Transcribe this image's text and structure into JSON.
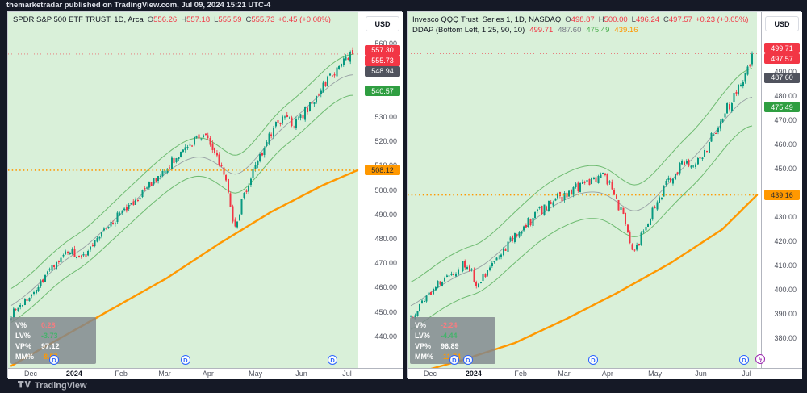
{
  "theme": {
    "page_bg": "#151926",
    "chart_bg_green": "#d9f0d9",
    "up_color": "#089981",
    "down_color": "#f23645",
    "band_color": "#62b565",
    "mid_color": "#8b909a",
    "ma_color": "#ff9800",
    "accent_blue": "#2962ff",
    "accent_purple": "#9c27b0"
  },
  "attribution": "themarketradar published on TradingView.com, Jul 09, 2024 15:21 UTC-4",
  "footer": {
    "brand": "TradingView"
  },
  "panels": [
    {
      "title": "SPDR S&P 500 ETF TRUST, 1D, Arca",
      "ohlc": {
        "o_label": "O",
        "o": "556.26",
        "h_label": "H",
        "h": "557.18",
        "l_label": "L",
        "l": "555.59",
        "c_label": "C",
        "c": "555.73",
        "change": "+0.45 (+0.08%)"
      },
      "currency_label": "USD",
      "price_labels": [
        {
          "text": "557.30",
          "price": 557.3,
          "bg": "#f23645",
          "fg": "#ffffff"
        },
        {
          "text": "555.73",
          "price": 555.73,
          "bg": "#f23645",
          "fg": "#ffffff"
        },
        {
          "text": "548.94",
          "price": 548.94,
          "bg": "#50535e",
          "fg": "#ffffff"
        },
        {
          "text": "540.57",
          "price": 540.57,
          "bg": "#2f9e41",
          "fg": "#ffffff"
        },
        {
          "text": "508.12",
          "price": 508.12,
          "bg": "#ff9800",
          "fg": "#2e2e2e"
        }
      ],
      "stats": {
        "rows": [
          {
            "label": "V%",
            "value": "0.28",
            "color": "#f77c80"
          },
          {
            "label": "LV%",
            "value": "-3.73",
            "color": "#45b36b"
          },
          {
            "label": "VP%",
            "value": "97.12",
            "color": "#ffffff"
          },
          {
            "label": "MM%",
            "value": "-8.57",
            "color": "#ff9800"
          }
        ]
      },
      "d_markers": [
        0.13,
        0.502,
        0.918
      ],
      "has_flash_marker": false
    },
    {
      "title": "Invesco QQQ Trust, Series 1, 1D, NASDAQ",
      "ohlc": {
        "o_label": "O",
        "o": "498.87",
        "h_label": "H",
        "h": "500.00",
        "l_label": "L",
        "l": "496.24",
        "c_label": "C",
        "c": "497.57",
        "change": "+0.23 (+0.05%)"
      },
      "indicator": {
        "name": "DDAP (Bottom Left, 1.25, 90, 10)",
        "values": [
          "499.71",
          "487.60",
          "475.49",
          "439.16"
        ],
        "value_colors": [
          "#f23645",
          "#787b86",
          "#4caf50",
          "#ff9800"
        ]
      },
      "currency_label": "USD",
      "price_labels": [
        {
          "text": "499.71",
          "price": 499.71,
          "bg": "#f23645",
          "fg": "#ffffff"
        },
        {
          "text": "497.57",
          "price": 497.57,
          "bg": "#f23645",
          "fg": "#ffffff"
        },
        {
          "text": "487.60",
          "price": 487.6,
          "bg": "#50535e",
          "fg": "#ffffff"
        },
        {
          "text": "475.49",
          "price": 475.49,
          "bg": "#2f9e41",
          "fg": "#ffffff"
        },
        {
          "text": "439.16",
          "price": 439.16,
          "bg": "#ff9800",
          "fg": "#2e2e2e"
        }
      ],
      "stats": {
        "rows": [
          {
            "label": "V%",
            "value": "-2.24",
            "color": "#f77c80"
          },
          {
            "label": "LV%",
            "value": "-4.44",
            "color": "#45b36b"
          },
          {
            "label": "VP%",
            "value": "96.89",
            "color": "#ffffff"
          },
          {
            "label": "MM%",
            "value": "-11.74",
            "color": "#ff9800"
          }
        ]
      },
      "d_markers": [
        0.132,
        0.171,
        0.525,
        0.952
      ],
      "has_flash_marker": true
    }
  ],
  "chart_data": [
    {
      "type": "candlestick",
      "title": "SPDR S&P 500 ETF TRUST, 1D, Arca",
      "timeframe": "1D",
      "price_axis": {
        "visible_min": 427.1,
        "visible_max": 572.9,
        "tick_min": 440,
        "tick_max": 560,
        "tick_step": 10
      },
      "time_axis": {
        "labels": [
          {
            "label": "Dec",
            "f": 0.064
          },
          {
            "label": "2024",
            "f": 0.187,
            "year": true
          },
          {
            "label": "Feb",
            "f": 0.32
          },
          {
            "label": "Mar",
            "f": 0.443
          },
          {
            "label": "Apr",
            "f": 0.566
          },
          {
            "label": "May",
            "f": 0.7
          },
          {
            "label": "Jun",
            "f": 0.83
          },
          {
            "label": "Jul",
            "f": 0.959
          }
        ]
      },
      "close_anchors": [
        [
          0,
          449
        ],
        [
          0.05,
          456
        ],
        [
          0.1,
          465
        ],
        [
          0.14,
          472
        ],
        [
          0.17,
          475.5
        ],
        [
          0.2,
          472
        ],
        [
          0.23,
          475
        ],
        [
          0.27,
          483
        ],
        [
          0.31,
          489
        ],
        [
          0.35,
          494
        ],
        [
          0.4,
          501
        ],
        [
          0.45,
          509
        ],
        [
          0.5,
          515
        ],
        [
          0.54,
          521
        ],
        [
          0.57,
          523
        ],
        [
          0.6,
          514
        ],
        [
          0.63,
          503
        ],
        [
          0.655,
          484
        ],
        [
          0.68,
          497
        ],
        [
          0.71,
          508
        ],
        [
          0.74,
          517
        ],
        [
          0.77,
          526
        ],
        [
          0.8,
          529
        ],
        [
          0.83,
          527
        ],
        [
          0.86,
          532
        ],
        [
          0.89,
          538
        ],
        [
          0.92,
          544
        ],
        [
          0.95,
          549
        ],
        [
          0.975,
          553
        ],
        [
          1,
          555.9
        ]
      ],
      "ma_anchors": [
        [
          0,
          428
        ],
        [
          0.15,
          440
        ],
        [
          0.3,
          452
        ],
        [
          0.45,
          464
        ],
        [
          0.6,
          478
        ],
        [
          0.75,
          491
        ],
        [
          0.9,
          502
        ],
        [
          1,
          508.12
        ]
      ],
      "band_width_pct": 0.0153,
      "levels": {
        "upper_band": 557.3,
        "mid_band": 548.94,
        "lower_band": 540.57,
        "anchor_line": 508.12,
        "last_close": 555.73
      },
      "num_candles": 152,
      "seed": 7,
      "volatility": 0.0035
    },
    {
      "type": "candlestick",
      "title": "Invesco QQQ Trust, Series 1, 1D, NASDAQ",
      "timeframe": "1D",
      "price_axis": {
        "visible_min": 367.7,
        "visible_max": 514.7,
        "tick_min": 380,
        "tick_max": 500,
        "tick_step": 10
      },
      "time_axis": {
        "labels": [
          {
            "label": "Dec",
            "f": 0.064
          },
          {
            "label": "2024",
            "f": 0.187,
            "year": true
          },
          {
            "label": "Feb",
            "f": 0.32
          },
          {
            "label": "Mar",
            "f": 0.443
          },
          {
            "label": "Apr",
            "f": 0.566
          },
          {
            "label": "May",
            "f": 0.7
          },
          {
            "label": "Jun",
            "f": 0.83
          },
          {
            "label": "Jul",
            "f": 0.959
          }
        ]
      },
      "close_anchors": [
        [
          0,
          389
        ],
        [
          0.05,
          398
        ],
        [
          0.1,
          406
        ],
        [
          0.14,
          409
        ],
        [
          0.165,
          411
        ],
        [
          0.19,
          403
        ],
        [
          0.22,
          406
        ],
        [
          0.26,
          415
        ],
        [
          0.3,
          421
        ],
        [
          0.34,
          427
        ],
        [
          0.38,
          433
        ],
        [
          0.42,
          437
        ],
        [
          0.46,
          440
        ],
        [
          0.5,
          443
        ],
        [
          0.54,
          446
        ],
        [
          0.57,
          447
        ],
        [
          0.6,
          438
        ],
        [
          0.63,
          427
        ],
        [
          0.655,
          414
        ],
        [
          0.68,
          424
        ],
        [
          0.71,
          434
        ],
        [
          0.74,
          441
        ],
        [
          0.77,
          448
        ],
        [
          0.8,
          452
        ],
        [
          0.83,
          450
        ],
        [
          0.86,
          457
        ],
        [
          0.89,
          465
        ],
        [
          0.92,
          473
        ],
        [
          0.95,
          480
        ],
        [
          0.975,
          488
        ],
        [
          1,
          497.6
        ]
      ],
      "ma_anchors": [
        [
          0,
          365
        ],
        [
          0.15,
          371
        ],
        [
          0.3,
          378
        ],
        [
          0.45,
          388
        ],
        [
          0.6,
          399
        ],
        [
          0.75,
          411
        ],
        [
          0.9,
          425
        ],
        [
          1,
          439.16
        ]
      ],
      "band_width_pct": 0.0248,
      "levels": {
        "upper_band": 499.71,
        "mid_band": 487.6,
        "lower_band": 475.49,
        "anchor_line": 439.16,
        "last_close": 497.57
      },
      "num_candles": 152,
      "seed": 13,
      "volatility": 0.005
    }
  ]
}
